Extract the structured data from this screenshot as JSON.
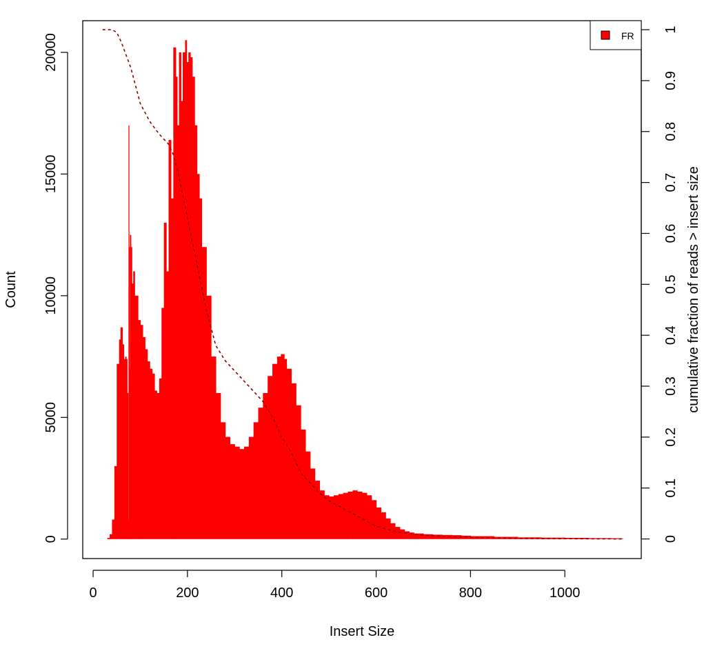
{
  "chart_data": {
    "type": "area",
    "xlabel": "Insert Size",
    "ylabel": "Count",
    "y2label": "cumulative fraction of reads > insert size",
    "xlim": [
      -22,
      1162
    ],
    "ylim": [
      -800,
      21300
    ],
    "y2lim": [
      -0.0385,
      1.0177
    ],
    "x_ticks": [
      0,
      200,
      400,
      600,
      800,
      1000
    ],
    "x_tick_labels": [
      "0",
      "200",
      "400",
      "600",
      "800",
      "1000"
    ],
    "y_ticks": [
      0,
      5000,
      10000,
      15000,
      20000
    ],
    "y_tick_labels": [
      "0",
      "5000",
      "10000",
      "15000",
      "20000"
    ],
    "y2_ticks": [
      0,
      0.1,
      0.2,
      0.3,
      0.4,
      0.5,
      0.6,
      0.7,
      0.8,
      0.9,
      1
    ],
    "y2_tick_labels": [
      "0",
      "0.1",
      "0.2",
      "0.3",
      "0.4",
      "0.5",
      "0.6",
      "0.7",
      "0.8",
      "0.9",
      "1"
    ],
    "legend": {
      "position": "top-right",
      "entries": [
        {
          "name": "FR",
          "color": "#ff0000"
        }
      ]
    },
    "grid": false,
    "series": [
      {
        "name": "FR",
        "kind": "histogram",
        "color": "#ff0000",
        "x": [
          20,
          30,
          35,
          40,
          45,
          50,
          55,
          58,
          62,
          65,
          68,
          70,
          72,
          74,
          75,
          76,
          77,
          78,
          80,
          82,
          85,
          88,
          92,
          95,
          100,
          105,
          110,
          115,
          120,
          125,
          130,
          135,
          140,
          145,
          150,
          155,
          160,
          165,
          170,
          175,
          178,
          182,
          186,
          190,
          195,
          198,
          202,
          206,
          210,
          215,
          220,
          225,
          230,
          240,
          250,
          260,
          270,
          280,
          290,
          300,
          310,
          320,
          330,
          340,
          350,
          360,
          370,
          380,
          390,
          398,
          405,
          410,
          420,
          430,
          440,
          450,
          460,
          470,
          480,
          490,
          500,
          510,
          520,
          530,
          540,
          550,
          560,
          570,
          580,
          590,
          600,
          610,
          620,
          630,
          640,
          650,
          660,
          670,
          680,
          700,
          720,
          740,
          760,
          780,
          800,
          850,
          900,
          950,
          1000,
          1050,
          1100,
          1120
        ],
        "y": [
          0,
          50,
          200,
          800,
          3000,
          7200,
          8200,
          8700,
          8000,
          7400,
          7500,
          7400,
          6000,
          800,
          17000,
          12000,
          7000,
          12500,
          12000,
          10500,
          11000,
          10000,
          10000,
          9000,
          8800,
          8300,
          7800,
          7300,
          7000,
          6800,
          6100,
          6000,
          6600,
          9500,
          13000,
          11000,
          16400,
          14000,
          20200,
          19000,
          17000,
          20000,
          18000,
          20000,
          20500,
          19600,
          20000,
          19800,
          19000,
          17000,
          15000,
          14000,
          12000,
          10000,
          7500,
          6000,
          4800,
          4200,
          3900,
          3800,
          3700,
          3800,
          4200,
          4800,
          5400,
          6000,
          6700,
          7200,
          7500,
          7600,
          7400,
          7000,
          6400,
          5500,
          4500,
          3600,
          2900,
          2400,
          2000,
          1800,
          1750,
          1800,
          1850,
          1900,
          1950,
          2000,
          1950,
          1900,
          1800,
          1600,
          1300,
          1100,
          850,
          650,
          500,
          400,
          320,
          270,
          230,
          200,
          180,
          170,
          160,
          140,
          120,
          90,
          70,
          60,
          50,
          40,
          35,
          30
        ]
      },
      {
        "name": "cumulative fraction of reads > insert size",
        "kind": "line",
        "axis": "right",
        "color": "#8b0000",
        "line_style": "dashed",
        "x": [
          20,
          40,
          50,
          60,
          70,
          80,
          90,
          100,
          120,
          140,
          160,
          170,
          180,
          200,
          220,
          240,
          260,
          280,
          300,
          320,
          340,
          360,
          380,
          400,
          420,
          440,
          460,
          480,
          500,
          520,
          540,
          560,
          580,
          600,
          620,
          640,
          660,
          680,
          700,
          750,
          800,
          900,
          1000,
          1120
        ],
        "y": [
          1.0,
          1.0,
          0.995,
          0.975,
          0.95,
          0.925,
          0.89,
          0.855,
          0.82,
          0.795,
          0.775,
          0.755,
          0.72,
          0.63,
          0.54,
          0.45,
          0.38,
          0.35,
          0.33,
          0.31,
          0.29,
          0.27,
          0.24,
          0.2,
          0.17,
          0.13,
          0.11,
          0.09,
          0.075,
          0.065,
          0.055,
          0.045,
          0.035,
          0.025,
          0.02,
          0.015,
          0.012,
          0.009,
          0.007,
          0.005,
          0.003,
          0.001,
          0.0005,
          0.0
        ]
      }
    ]
  }
}
